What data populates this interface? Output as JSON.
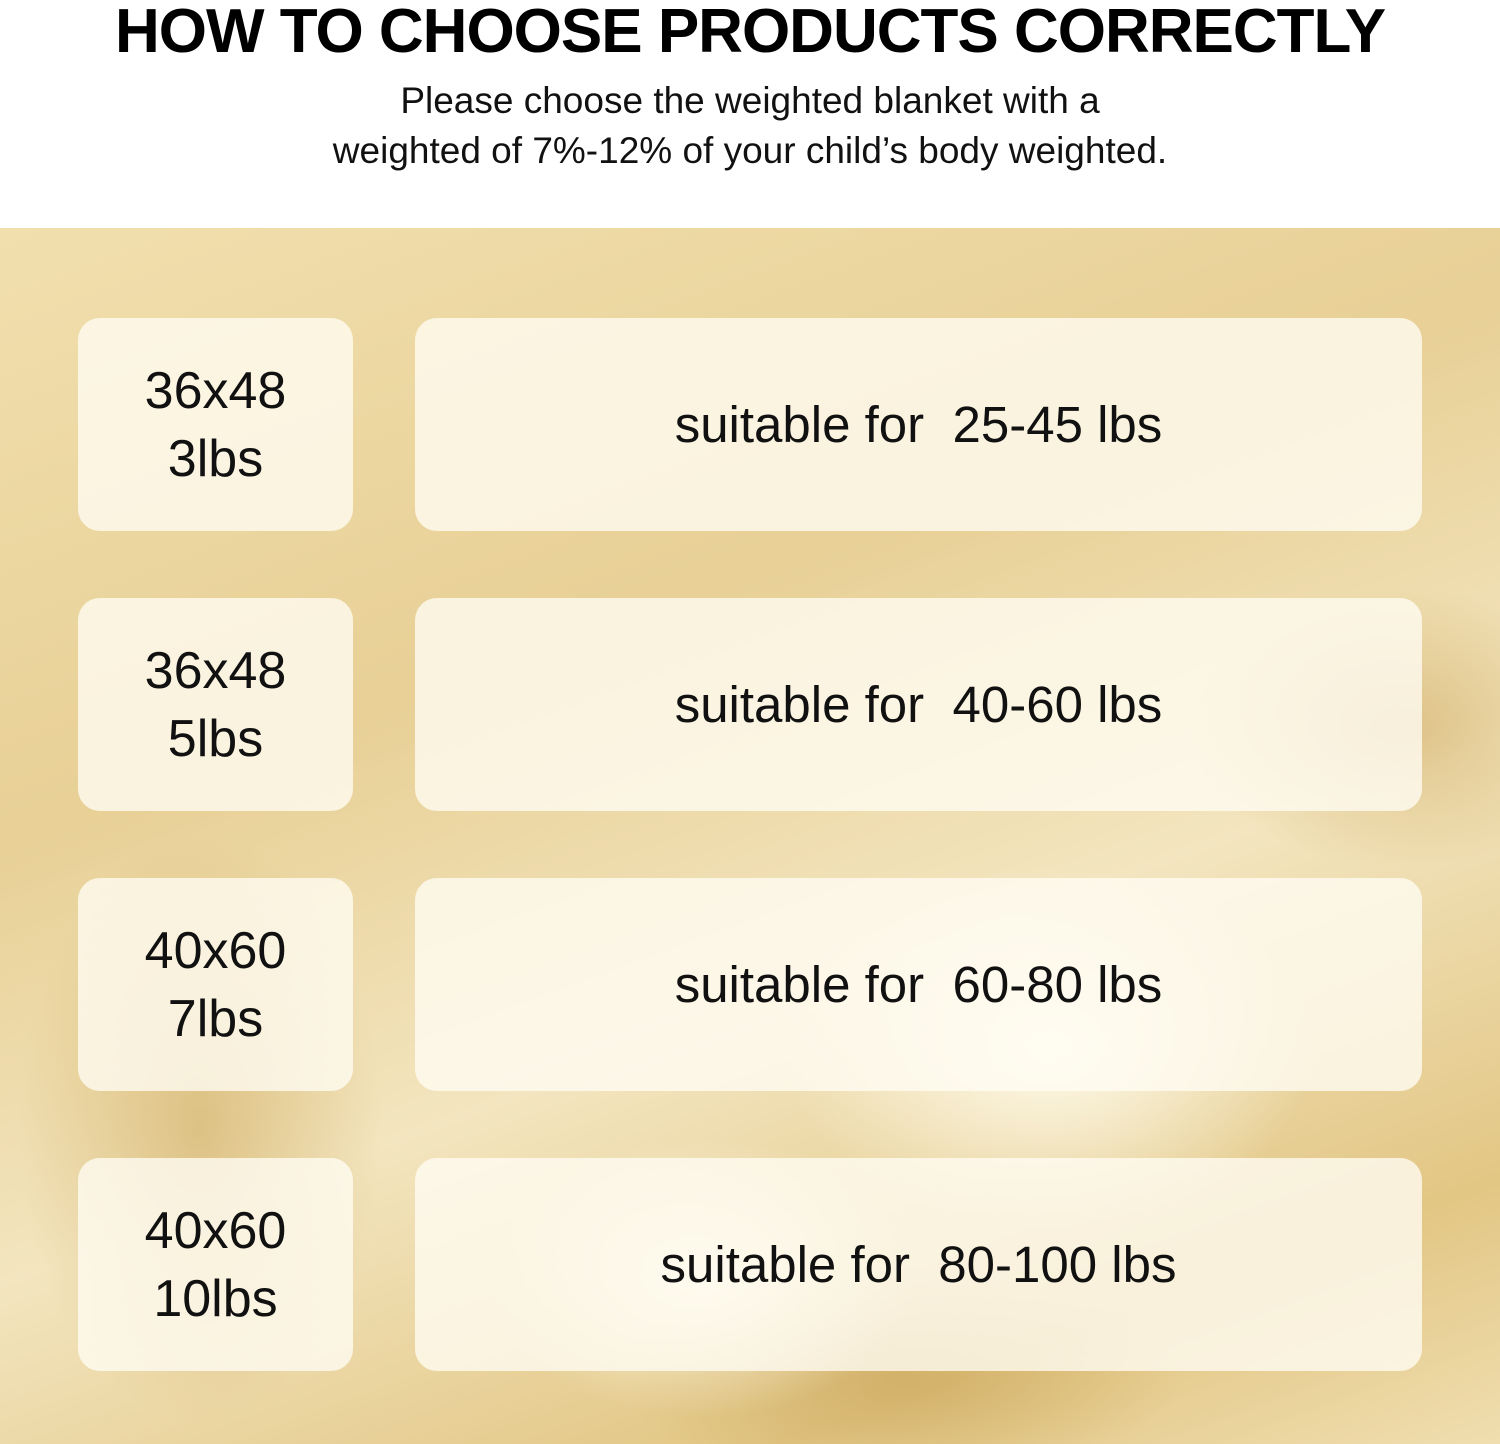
{
  "header": {
    "title": "HOW TO CHOOSE PRODUCTS CORRECTLY",
    "subtitle_line1": "Please choose the weighted blanket with a",
    "subtitle_line2": "weighted of 7%-12% of your child’s body weighted."
  },
  "rows": [
    {
      "size": "36x48",
      "weight": "3lbs",
      "suitable": "suitable for  25-45 lbs"
    },
    {
      "size": "36x48",
      "weight": "5lbs",
      "suitable": "suitable for  40-60 lbs"
    },
    {
      "size": "40x60",
      "weight": "7lbs",
      "suitable": "suitable for  60-80 lbs"
    },
    {
      "size": "40x60",
      "weight": "10lbs",
      "suitable": "suitable for  80-100 lbs"
    }
  ]
}
